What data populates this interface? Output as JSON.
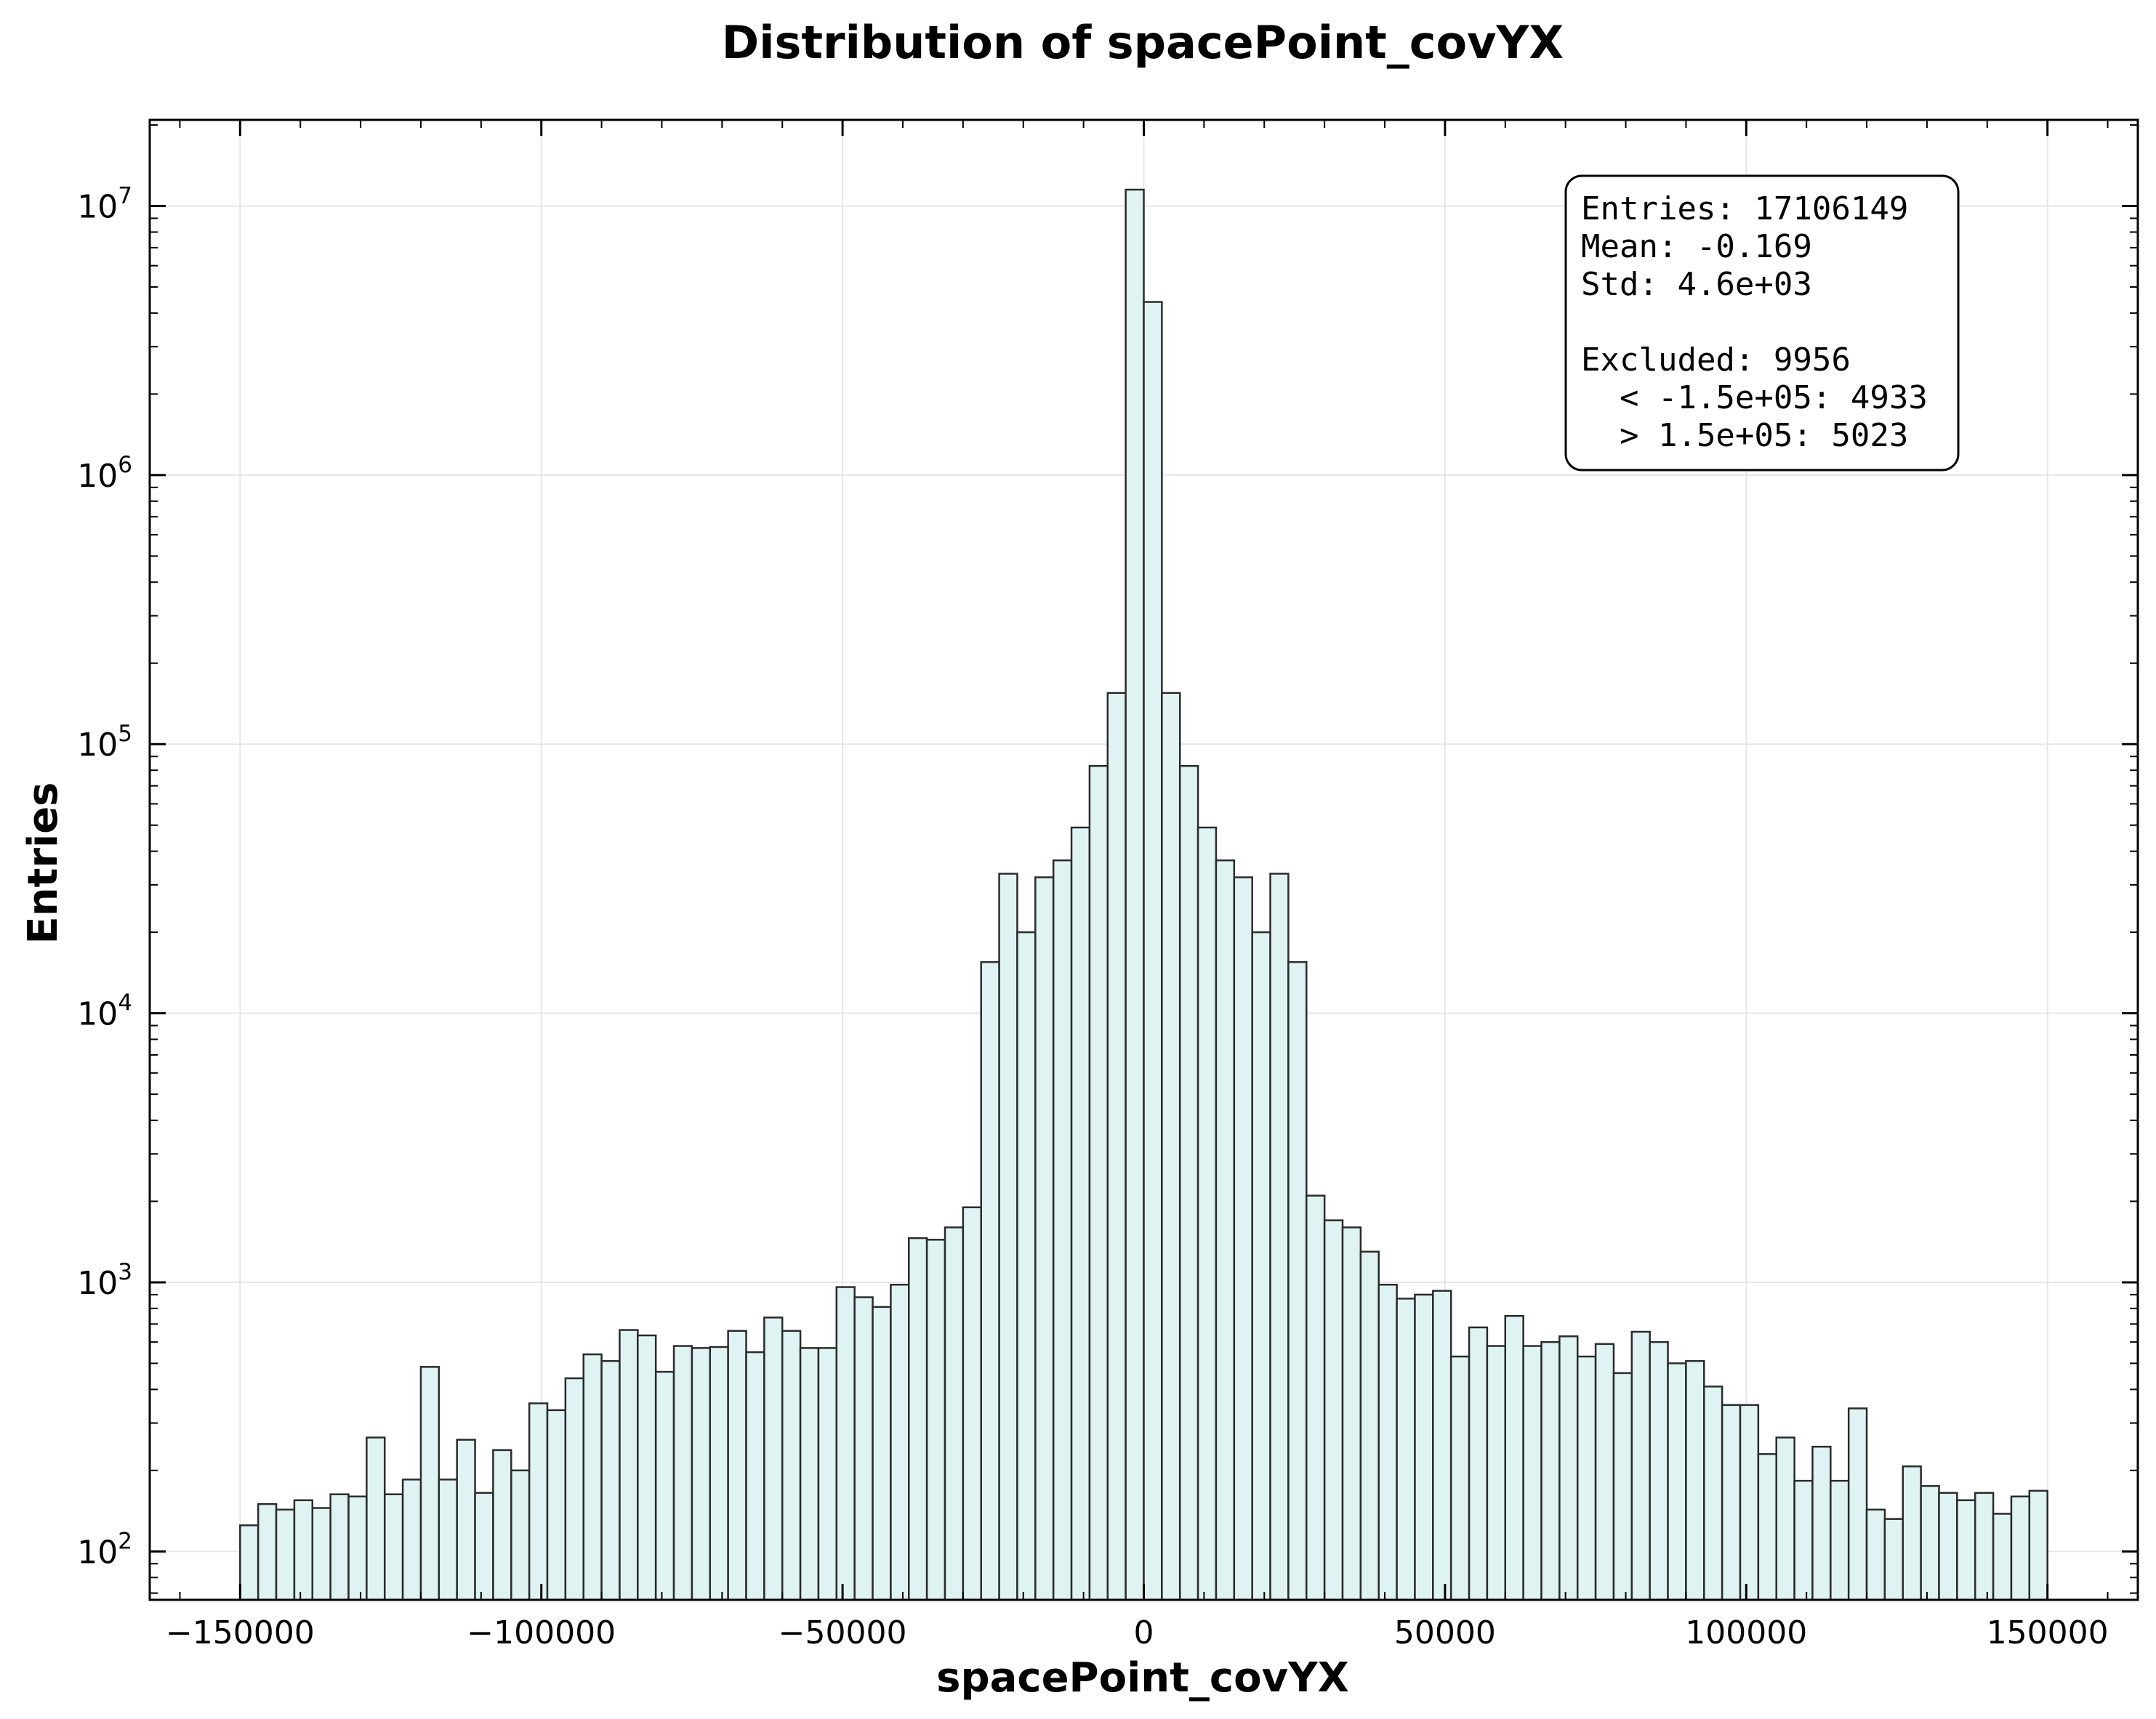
{
  "chart_data": {
    "type": "bar",
    "title": "Distribution of spacePoint_covYX",
    "xlabel": "spacePoint_covYX",
    "ylabel": "Entries",
    "xlim": [
      -165000,
      165000
    ],
    "ylim_log10": [
      1.82,
      7.32
    ],
    "yscale": "log",
    "grid": true,
    "x_ticks": [
      -150000,
      -100000,
      -50000,
      0,
      50000,
      100000,
      150000
    ],
    "x_tick_labels": [
      "−150000",
      "−100000",
      "−50000",
      "0",
      "50000",
      "100000",
      "150000"
    ],
    "y_ticks": [
      {
        "base": "10",
        "exp": "2",
        "value": 100
      },
      {
        "base": "10",
        "exp": "3",
        "value": 1000
      },
      {
        "base": "10",
        "exp": "4",
        "value": 10000
      },
      {
        "base": "10",
        "exp": "5",
        "value": 100000
      },
      {
        "base": "10",
        "exp": "6",
        "value": 1000000
      },
      {
        "base": "10",
        "exp": "7",
        "value": 10000000
      }
    ],
    "bin_range": [
      -150000,
      150000
    ],
    "bin_count": 100,
    "bar_fill": "#e0f3f3",
    "bar_edge": "#2b2b2b",
    "values": [
      125,
      150,
      143,
      155,
      145,
      163,
      160,
      265,
      163,
      185,
      485,
      185,
      260,
      165,
      238,
      200,
      355,
      335,
      440,
      540,
      510,
      665,
      635,
      465,
      580,
      570,
      575,
      660,
      550,
      740,
      660,
      570,
      570,
      960,
      880,
      810,
      980,
      1460,
      1440,
      1600,
      1900,
      15500,
      33000,
      20000,
      32000,
      37000,
      49000,
      83000,
      155000,
      11500000,
      4400000,
      155000,
      83000,
      49000,
      37000,
      32000,
      20000,
      33000,
      15500,
      2100,
      1700,
      1600,
      1300,
      980,
      870,
      900,
      930,
      530,
      680,
      580,
      750,
      580,
      600,
      630,
      530,
      590,
      460,
      655,
      600,
      500,
      510,
      410,
      350,
      350,
      230,
      265,
      183,
      245,
      183,
      340,
      143,
      132,
      207,
      175,
      165,
      155,
      165,
      138,
      160,
      168
    ],
    "stats_box": {
      "lines": [
        "Entries: 17106149",
        "Mean: -0.169",
        "Std: 4.6e+03",
        "",
        "Excluded: 9956",
        "  < -1.5e+05: 4933",
        "  > 1.5e+05: 5023"
      ],
      "placement": "top-right"
    }
  }
}
